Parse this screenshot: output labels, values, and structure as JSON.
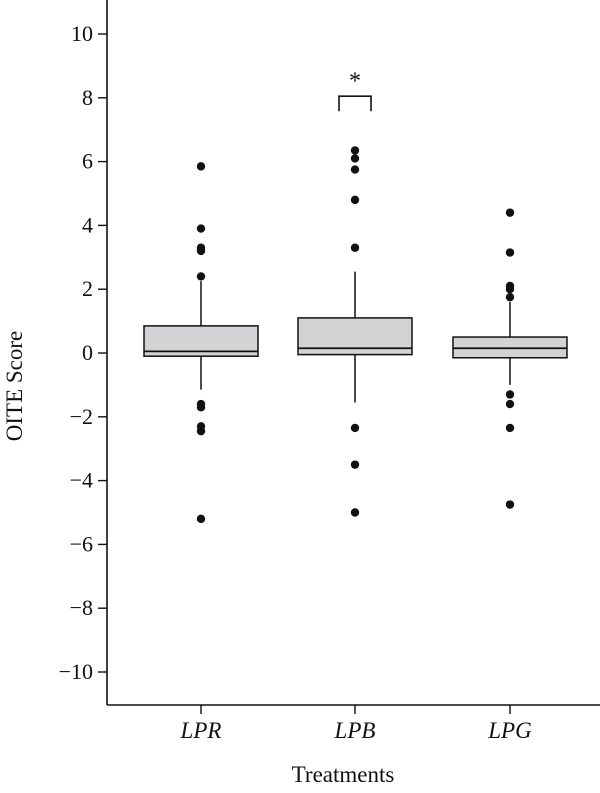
{
  "chart_data": {
    "type": "box",
    "xlabel": "Treatments",
    "ylabel": "OITE Score",
    "ylim": [
      -11,
      11
    ],
    "yticks": [
      -10,
      -8,
      -6,
      -4,
      -2,
      0,
      2,
      4,
      6,
      8,
      10
    ],
    "grid": false,
    "categories": [
      "LPR",
      "LPB",
      "LPG"
    ],
    "boxes": [
      {
        "category": "LPR",
        "whisker_low": -1.15,
        "q1": -0.1,
        "median": 0.05,
        "q3": 0.85,
        "whisker_high": 2.25,
        "outliers": [
          5.85,
          3.9,
          3.3,
          3.2,
          2.4,
          -1.6,
          -1.7,
          -2.3,
          -2.45,
          -5.2
        ]
      },
      {
        "category": "LPB",
        "whisker_low": -1.55,
        "q1": -0.05,
        "median": 0.15,
        "q3": 1.1,
        "whisker_high": 2.55,
        "outliers": [
          6.35,
          6.1,
          5.75,
          4.8,
          3.3,
          -2.35,
          -3.5,
          -5.0
        ]
      },
      {
        "category": "LPG",
        "whisker_low": -1.0,
        "q1": -0.15,
        "median": 0.15,
        "q3": 0.5,
        "whisker_high": 1.6,
        "outliers": [
          4.4,
          3.15,
          2.1,
          2.0,
          1.75,
          -1.3,
          -1.6,
          -2.35,
          -4.75
        ]
      }
    ],
    "annotations": [
      {
        "text": "*",
        "category": "LPB",
        "bracket_y": 8.05,
        "text_y": 8.8
      }
    ]
  }
}
